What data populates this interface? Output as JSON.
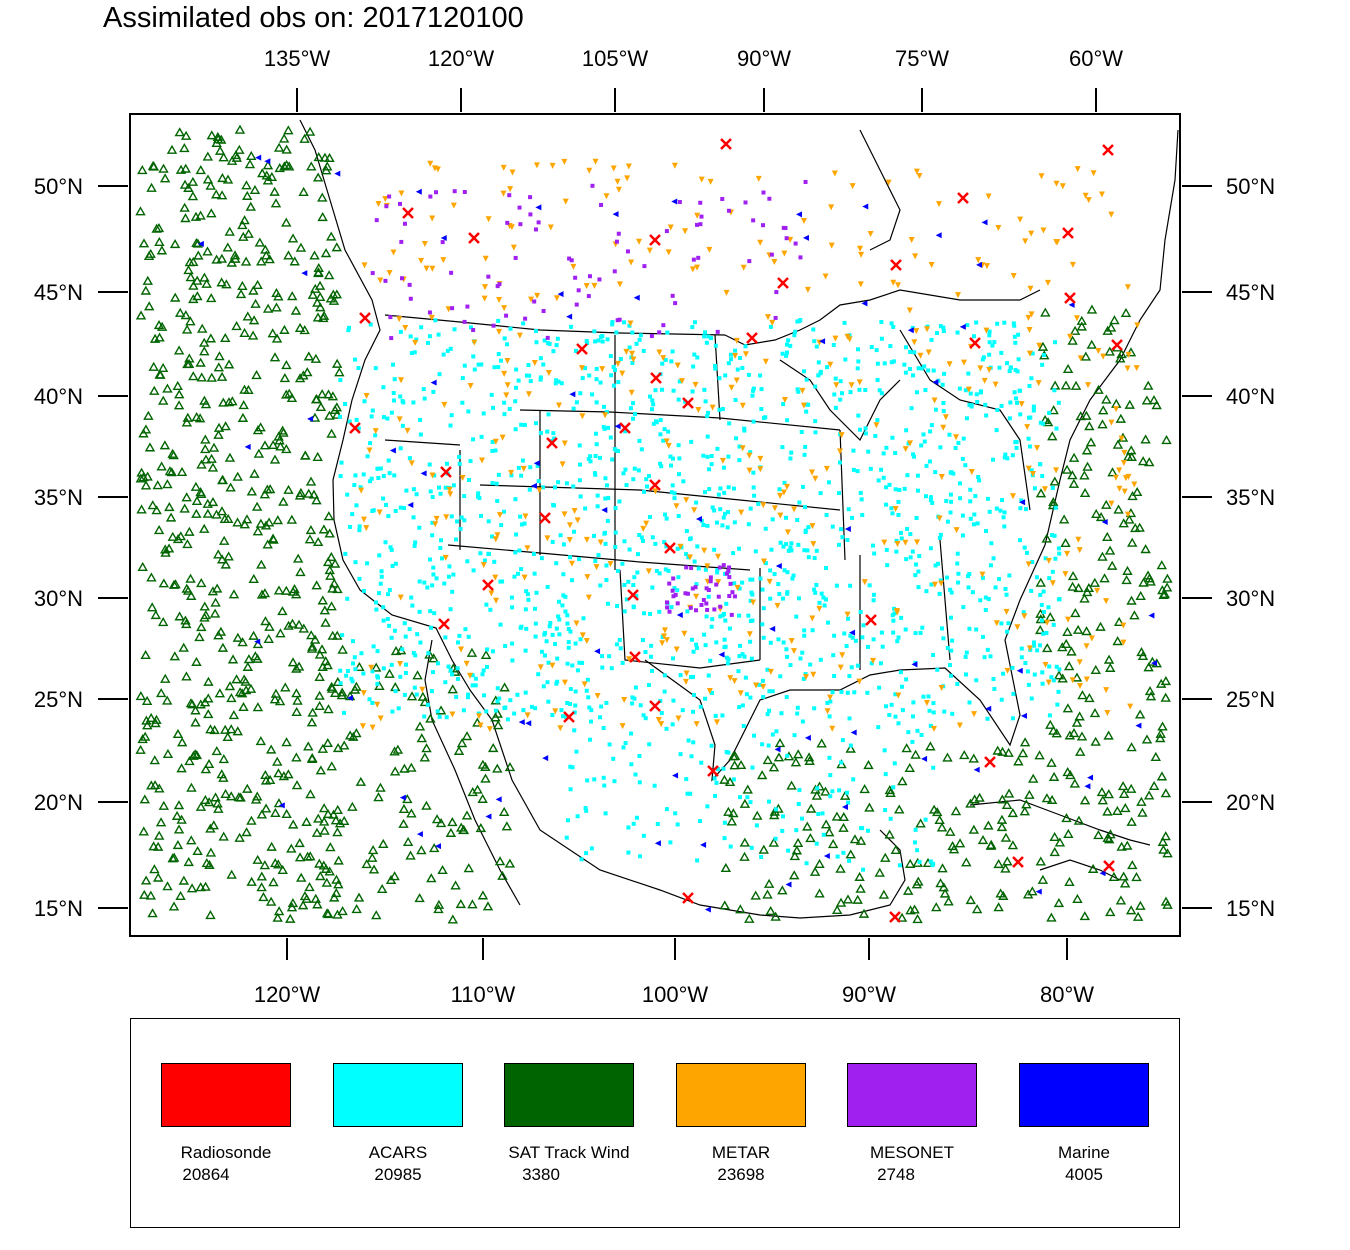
{
  "title": "Assimilated obs on: 2017120100",
  "axes": {
    "top_labels": [
      "135°W",
      "120°W",
      "105°W",
      "90°W",
      "75°W",
      "60°W"
    ],
    "bottom_labels": [
      "120°W",
      "110°W",
      "100°W",
      "90°W",
      "80°W"
    ],
    "lat_labels": [
      "50°N",
      "45°N",
      "40°N",
      "35°N",
      "30°N",
      "25°N",
      "20°N",
      "15°N"
    ]
  },
  "legend": [
    {
      "name": "Radiosonde",
      "count": "20864",
      "color": "#ff0000"
    },
    {
      "name": "ACARS",
      "count": "20985",
      "color": "#00ffff"
    },
    {
      "name": "SAT Track Wind",
      "count": "3380",
      "color": "#006400"
    },
    {
      "name": "METAR",
      "count": "23698",
      "color": "#ffa500"
    },
    {
      "name": "MESONET",
      "count": "2748",
      "color": "#a020f0"
    },
    {
      "name": "Marine",
      "count": "4005",
      "color": "#0000ff"
    }
  ]
}
